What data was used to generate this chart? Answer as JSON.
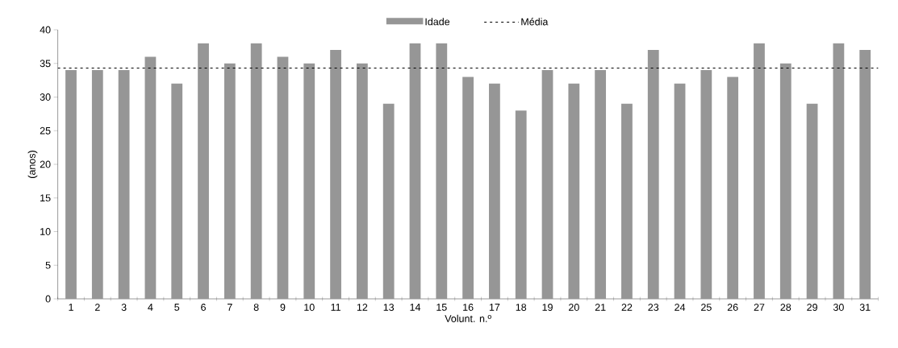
{
  "chart_data": {
    "type": "bar",
    "xlabel": "Volunt. n.º",
    "ylabel": "(anos)",
    "categories": [
      "1",
      "2",
      "3",
      "4",
      "5",
      "6",
      "7",
      "8",
      "9",
      "10",
      "11",
      "12",
      "13",
      "14",
      "15",
      "16",
      "17",
      "18",
      "19",
      "20",
      "21",
      "22",
      "23",
      "24",
      "25",
      "26",
      "27",
      "28",
      "29",
      "30",
      "31"
    ],
    "series": [
      {
        "name": "Idade",
        "color": "#969696",
        "values": [
          34,
          34,
          34,
          36,
          32,
          38,
          35,
          38,
          36,
          35,
          37,
          35,
          29,
          38,
          38,
          33,
          32,
          28,
          34,
          32,
          34,
          29,
          37,
          32,
          34,
          33,
          38,
          35,
          29,
          38,
          37
        ]
      }
    ],
    "ref_lines": [
      {
        "axis": "y",
        "value": 34.3,
        "label": "Média",
        "color": "#000000",
        "line_style": "dashed"
      }
    ],
    "ylim": [
      0,
      40
    ],
    "yticks": [
      0,
      5,
      10,
      15,
      20,
      25,
      30,
      35,
      40
    ],
    "grid": false,
    "legend": "top"
  }
}
